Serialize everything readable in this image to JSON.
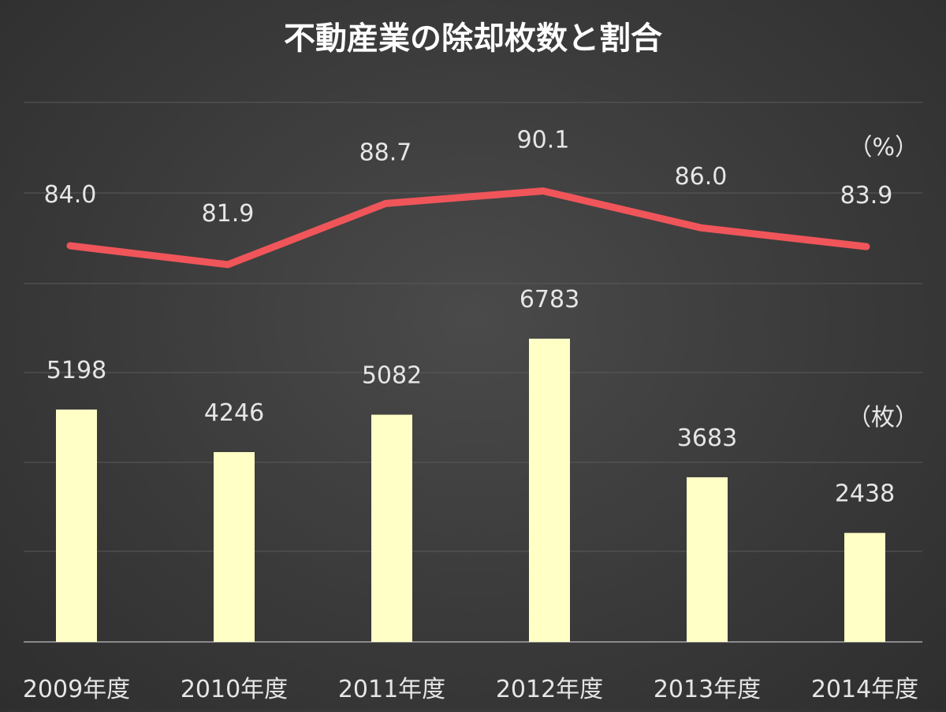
{
  "colors": {
    "background": "#3a3a3a",
    "bar": "#ffffc6",
    "line": "#f0555a",
    "gridline": "#5a5a5a",
    "text": "#e6e6e6"
  },
  "chart_data": {
    "type": "bar",
    "title": "不動産業の除却枚数と割合",
    "categories": [
      "2009年度",
      "2010年度",
      "2011年度",
      "2012年度",
      "2013年度",
      "2014年度"
    ],
    "series": [
      {
        "type": "bar",
        "unit": "（枚）",
        "values": [
          5198,
          4246,
          5082,
          6783,
          3683,
          2438
        ]
      },
      {
        "type": "line",
        "unit": "（%）",
        "values": [
          "84.0",
          "81.9",
          "88.7",
          "90.1",
          "86.0",
          "83.9"
        ]
      }
    ],
    "grid": true,
    "legend": "none"
  }
}
